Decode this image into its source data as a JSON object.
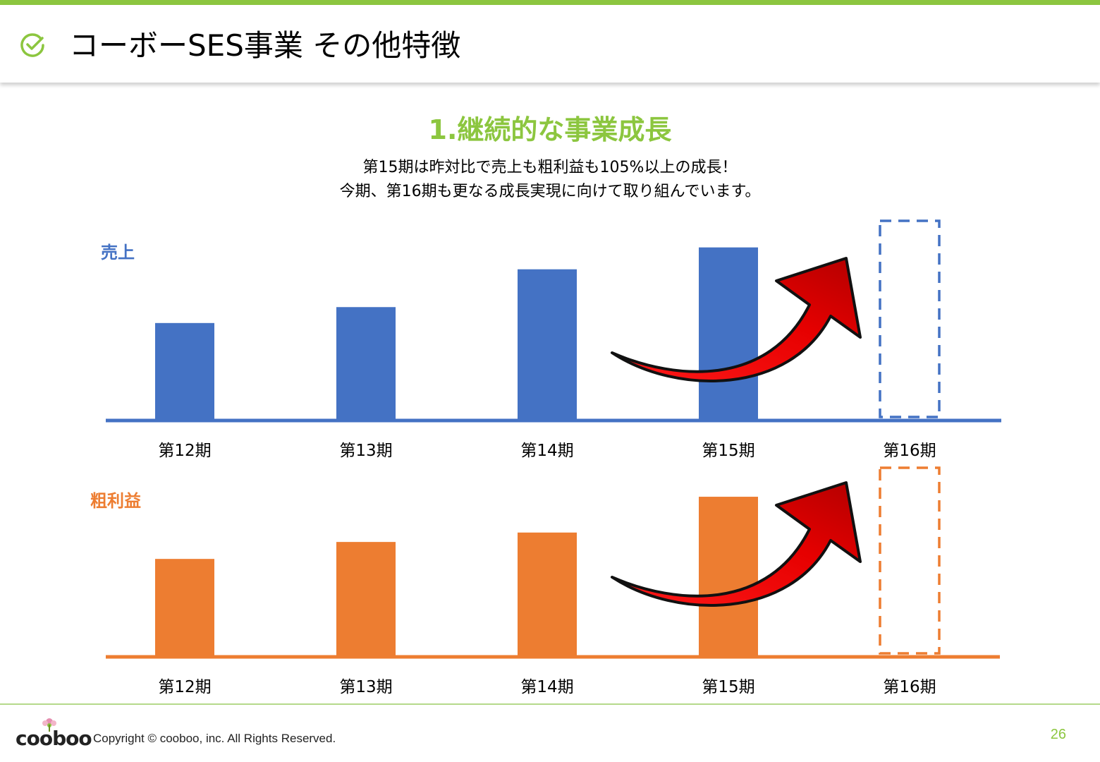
{
  "header": {
    "title": "コーボーSES事業  その他特徴",
    "icon": "check-circle-icon",
    "accent_color": "#8cc63f"
  },
  "section": {
    "title": "1.継続的な事業成長",
    "subtitle_line1": "第15期は昨対比で売上も粗利益も105%以上の成長！",
    "subtitle_line2": "今期、第16期も更なる成長実現に向けて取り組んでいます。"
  },
  "chart_data": [
    {
      "type": "bar",
      "title": "売上",
      "categories": [
        "第12期",
        "第13期",
        "第14期",
        "第15期",
        "第16期"
      ],
      "values": [
        49,
        57,
        76,
        87,
        null
      ],
      "projected": {
        "category": "第16期",
        "value": 100,
        "style": "dashed-outline"
      },
      "color": "#4472c4",
      "ylim": [
        0,
        100
      ],
      "annotation": "growth-arrow-icon",
      "grid": false
    },
    {
      "type": "bar",
      "title": "粗利益",
      "categories": [
        "第12期",
        "第13期",
        "第14期",
        "第15期",
        "第16期"
      ],
      "values": [
        52,
        61,
        66,
        85,
        null
      ],
      "projected": {
        "category": "第16期",
        "value": 100,
        "style": "dashed-outline"
      },
      "color": "#ed7d31",
      "ylim": [
        0,
        100
      ],
      "annotation": "growth-arrow-icon",
      "grid": false
    }
  ],
  "footer": {
    "logo_text": "cooboo",
    "copyright": "Copyright ©  cooboo, inc. All Rights Reserved.",
    "page_number": "26"
  }
}
